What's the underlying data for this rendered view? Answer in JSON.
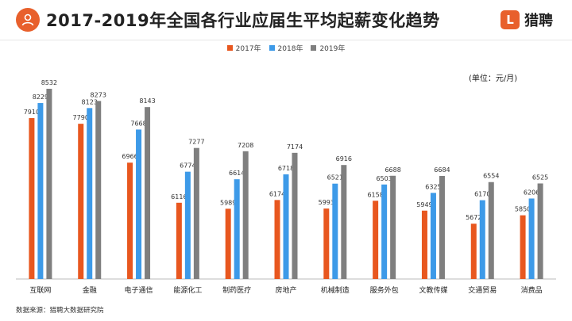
{
  "header": {
    "title": "2017-2019年全国各行业应届生平均起薪变化趋势",
    "brand_mark": "L",
    "brand_name": "猎聘",
    "brand_color": "#e8602c"
  },
  "unit_label": "(单位：元/月)",
  "source_label": "数据来源：猎聘大数据研究院",
  "chart_data": {
    "type": "bar",
    "title": "2017-2019年全国各行业应届生平均起薪变化趋势",
    "ylabel": "(单位：元/月)",
    "ylim": [
      4500,
      9000
    ],
    "grid": false,
    "legend_position": "top-center",
    "categories": [
      "互联网",
      "金融",
      "电子通信",
      "能源化工",
      "制药医疗",
      "房地产",
      "机械制造",
      "服务外包",
      "文教传媒",
      "交通贸易",
      "消费品"
    ],
    "series": [
      {
        "name": "2017年",
        "color": "#e8571f",
        "values": [
          7910,
          7790,
          6966,
          6116,
          5989,
          6174,
          5993,
          6158,
          5949,
          5672,
          5850
        ]
      },
      {
        "name": "2018年",
        "color": "#3d9ae8",
        "values": [
          8229,
          8123,
          7668,
          6774,
          6614,
          6718,
          6521,
          6503,
          6325,
          6170,
          6206
        ]
      },
      {
        "name": "2019年",
        "color": "#7f7f7f",
        "values": [
          8532,
          8273,
          8143,
          7277,
          7208,
          7174,
          6916,
          6688,
          6684,
          6554,
          6525
        ]
      }
    ]
  }
}
